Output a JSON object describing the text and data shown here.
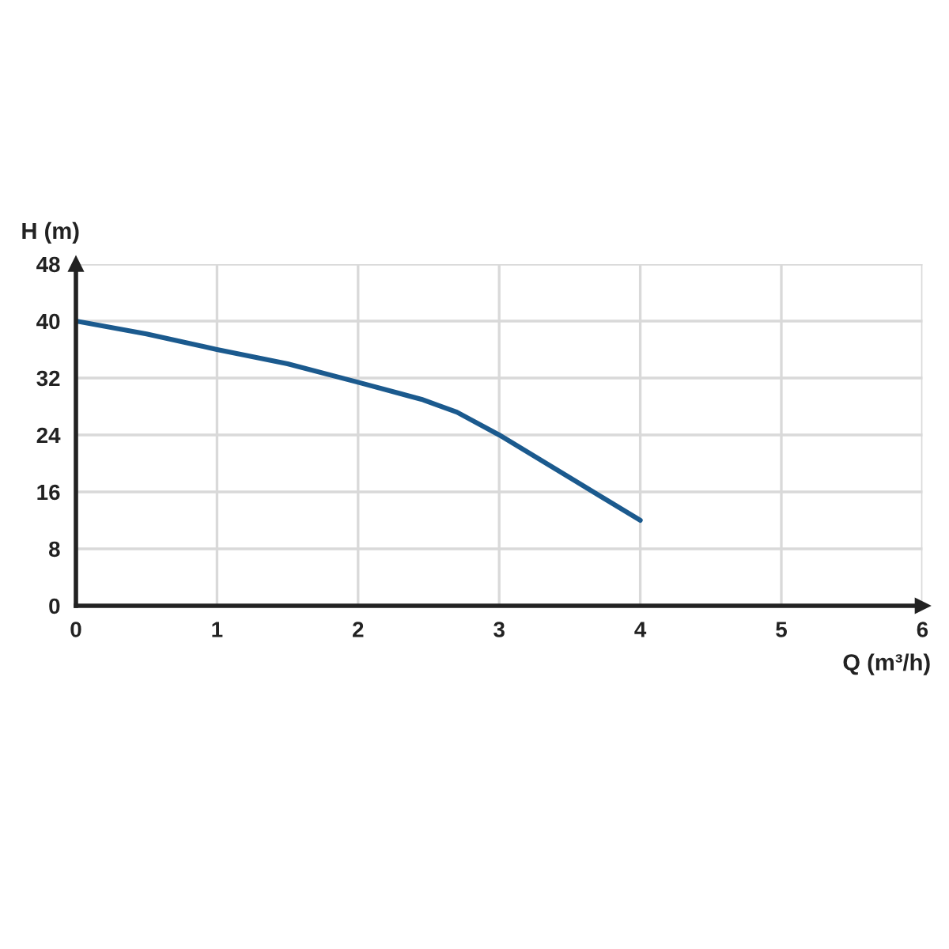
{
  "chart_data": {
    "type": "line",
    "xlabel": "Q (m³/h)",
    "ylabel": "H (m)",
    "x": [
      0,
      0.5,
      1,
      1.5,
      2,
      2.45,
      2.7,
      3,
      3.5,
      4
    ],
    "series": [
      {
        "color": "#1b5a8e",
        "values": [
          40,
          38.2,
          36,
          34,
          31.4,
          29,
          27.2,
          24,
          18,
          12
        ]
      }
    ],
    "xlim": [
      0,
      6
    ],
    "xticks": [
      0,
      1,
      2,
      3,
      4,
      5,
      6
    ],
    "ylim": [
      0,
      48
    ],
    "yticks": [
      0,
      8,
      16,
      24,
      32,
      40,
      48
    ],
    "grid": true,
    "marker": "none",
    "line_style": "solid"
  }
}
